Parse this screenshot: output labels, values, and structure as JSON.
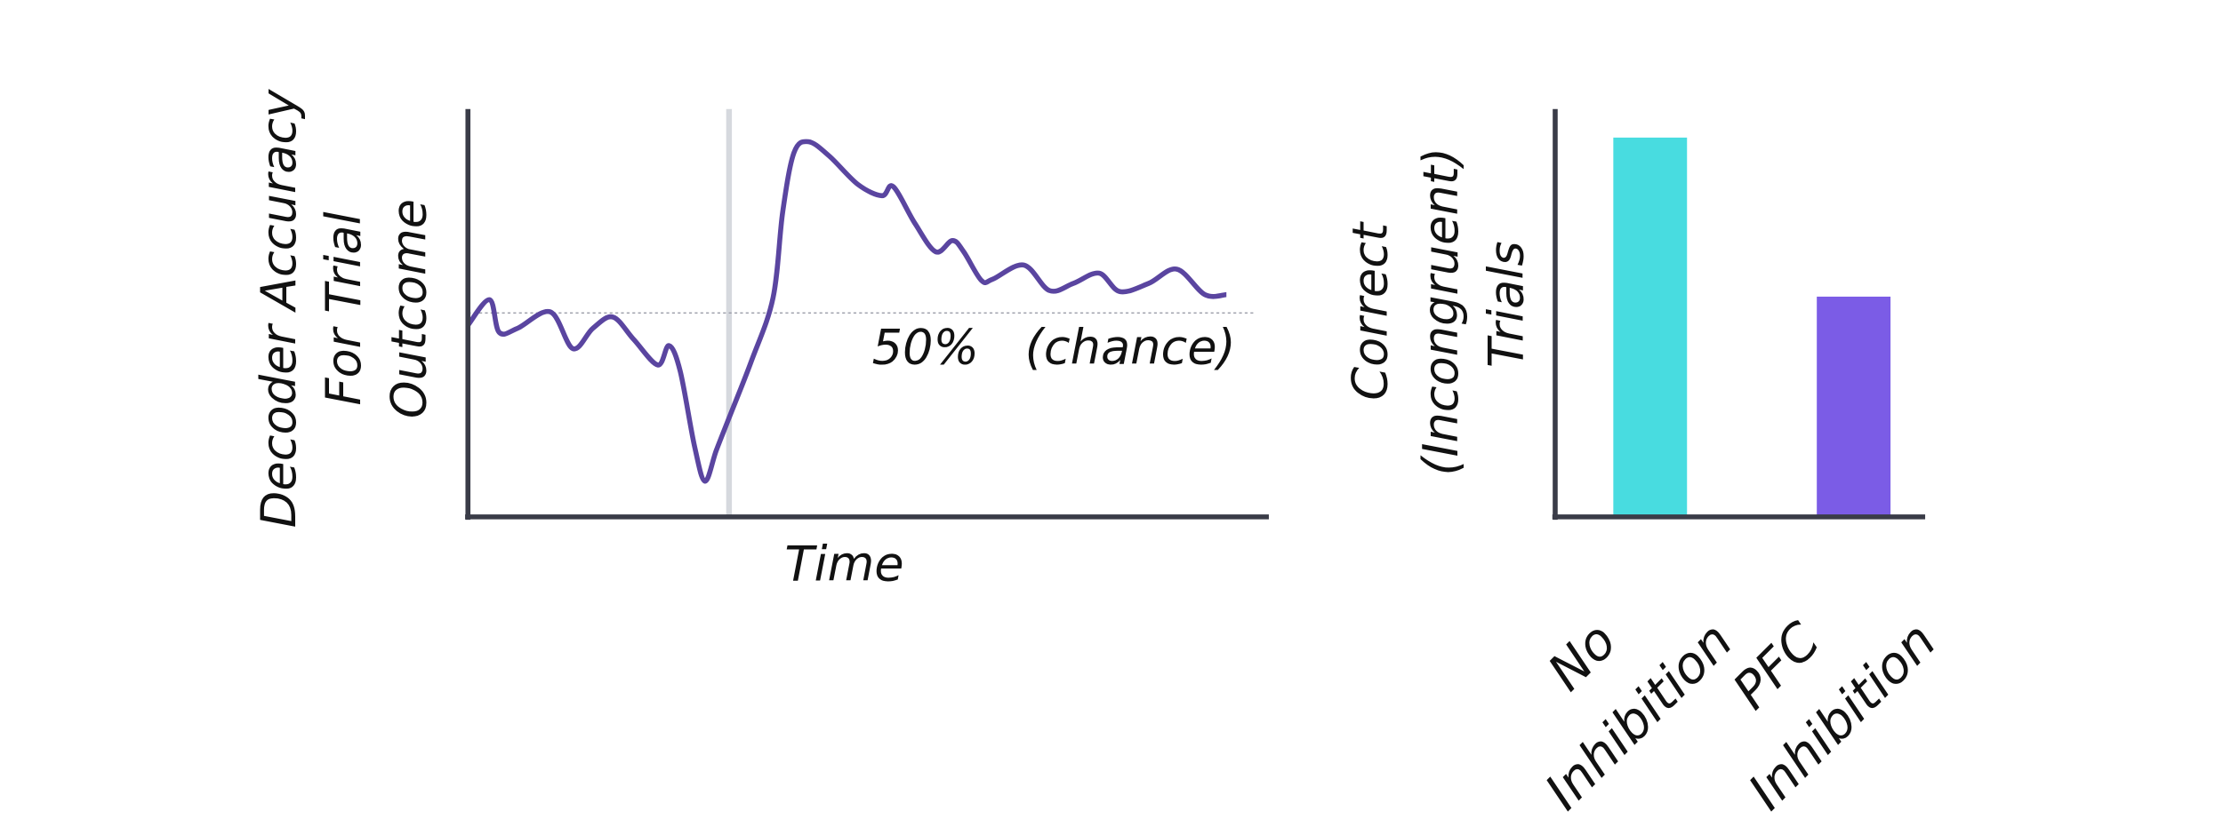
{
  "chart_data": [
    {
      "type": "line",
      "xlabel": "Time",
      "ylabel": [
        "Decoder Accuracy",
        "For Trial",
        "Outcome"
      ],
      "x": [
        0,
        2.7,
        3.9,
        6.2,
        10.3,
        13.1,
        15.6,
        18.1,
        20.7,
        23.7,
        25.1,
        26.5,
        28.3,
        29.6,
        31.0,
        32.6,
        35.4,
        38.1,
        39.3,
        40.7,
        42.5,
        45.1,
        48.7,
        51.7,
        53.1,
        55.8,
        58.4,
        60.5,
        61.9,
        64.1,
        65.5,
        69.4,
        72.6,
        75.6,
        78.8,
        81.4,
        85.0,
        88.5,
        92.0,
        94.7
      ],
      "series": [
        {
          "color": "#5a45a0",
          "values": [
            48.8,
            51.3,
            48.1,
            48.5,
            50.1,
            46.5,
            48.5,
            49.6,
            47.4,
            44.9,
            46.8,
            44.3,
            36.9,
            33.5,
            36.5,
            39.7,
            45.3,
            51.5,
            59.9,
            65.7,
            66.8,
            65.4,
            62.6,
            61.5,
            62.4,
            58.8,
            56.0,
            57.1,
            56.0,
            53.2,
            53.3,
            54.7,
            52.2,
            52.9,
            53.9,
            52.1,
            52.9,
            54.3,
            51.8,
            51.8
          ]
        }
      ],
      "xlim": [
        0,
        100
      ],
      "ylim": [
        30,
        70
      ],
      "event_x": 32.6,
      "chance_value": 50,
      "chance_label": "50%   (chance)"
    },
    {
      "type": "bar",
      "ylabel": [
        "Correct",
        "(Incongruent)",
        "Trials"
      ],
      "categories": [
        "No Inhibition",
        "PFC Inhibition"
      ],
      "values": [
        93,
        54
      ],
      "colors": [
        "#48dce0",
        "#7b5ce6"
      ],
      "ylim": [
        0,
        100
      ]
    }
  ]
}
